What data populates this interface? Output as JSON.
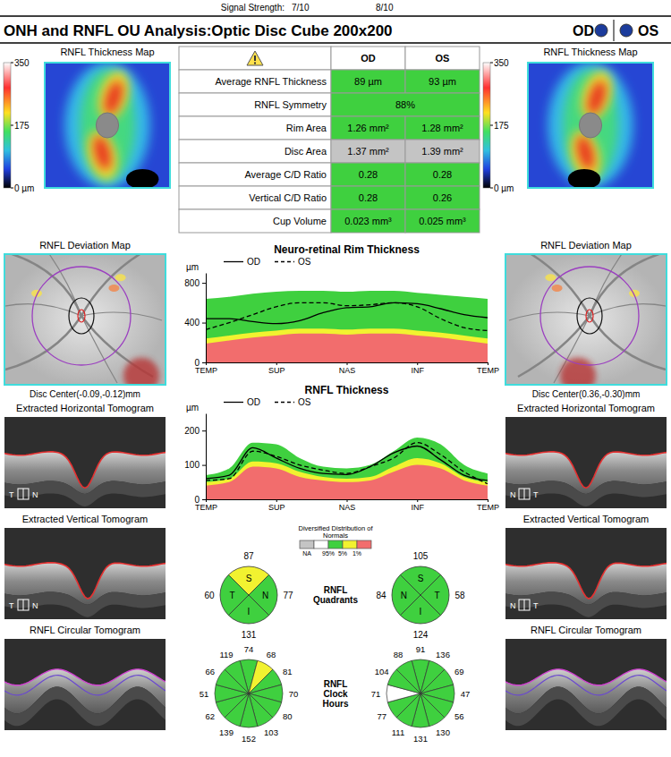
{
  "header": {
    "signal_label": "Signal Strength:",
    "signal_od": "7/10",
    "signal_os": "8/10",
    "title": "ONH and RNFL OU Analysis:Optic Disc Cube 200x200",
    "eyes": [
      "OD",
      "OS"
    ]
  },
  "table": {
    "columns": [
      "OD",
      "OS"
    ],
    "rows": [
      {
        "label": "Average RNFL Thickness",
        "od": "89 µm",
        "os": "93 µm",
        "color": "#3fd03f"
      },
      {
        "label": "RNFL Symmetry",
        "both": "88%",
        "color": "#3fd03f"
      },
      {
        "label": "Rim Area",
        "od": "1.26 mm²",
        "os": "1.28 mm²",
        "color": "#3fd03f"
      },
      {
        "label": "Disc Area",
        "od": "1.37 mm²",
        "os": "1.39 mm²",
        "color": "#c4c4c4"
      },
      {
        "label": "Average C/D Ratio",
        "od": "0.28",
        "os": "0.28",
        "color": "#3fd03f"
      },
      {
        "label": "Vertical C/D Ratio",
        "od": "0.28",
        "os": "0.26",
        "color": "#3fd03f"
      },
      {
        "label": "Cup Volume",
        "od": "0.023 mm³",
        "os": "0.025 mm³",
        "color": "#3fd03f"
      }
    ]
  },
  "eyes": [
    {
      "thickness_map_title": "RNFL Thickness Map",
      "colorbar": {
        "range": [
          0,
          350
        ],
        "ticks": [
          350,
          175,
          {
            "value": 0,
            "label": "0 µm"
          }
        ]
      },
      "deviation_map_title": "RNFL Deviation Map",
      "disc_center": "Disc Center(-0.09,-0.12)mm",
      "tomograms": [
        {
          "title": "Extracted Horizontal Tomogram",
          "orientation": [
            "T",
            "N"
          ]
        },
        {
          "title": "Extracted Vertical Tomogram",
          "orientation": [
            "T",
            "N"
          ]
        },
        {
          "title": "RNFL Circular Tomogram"
        }
      ]
    },
    {
      "thickness_map_title": "RNFL Thickness Map",
      "colorbar": {
        "range": [
          0,
          350
        ],
        "ticks": [
          350,
          175,
          {
            "value": 0,
            "label": "0 µm"
          }
        ]
      },
      "deviation_map_title": "RNFL Deviation Map",
      "disc_center": "Disc Center(0.36,-0.30)mm",
      "tomograms": [
        {
          "title": "Extracted Horizontal Tomogram",
          "orientation": [
            "N",
            "T"
          ]
        },
        {
          "title": "Extracted Vertical Tomogram",
          "orientation": [
            "N",
            "T"
          ]
        },
        {
          "title": "RNFL Circular Tomogram"
        }
      ]
    }
  ],
  "chart_data": [
    {
      "type": "line",
      "title": "Neuro-retinal Rim Thickness",
      "y_label": "µm",
      "legend": "top",
      "x": [
        0,
        30,
        60,
        90,
        120,
        150,
        180,
        210,
        240,
        270,
        300,
        330,
        360
      ],
      "xlim": [
        0,
        360
      ],
      "xticks": [
        {
          "value": 0,
          "label": "TEMP"
        },
        {
          "value": 90,
          "label": "SUP"
        },
        {
          "value": 180,
          "label": "NAS"
        },
        {
          "value": 270,
          "label": "INF"
        },
        {
          "value": 360,
          "label": "TEMP"
        }
      ],
      "ylim": [
        0,
        900
      ],
      "yticks": [
        0,
        400,
        800
      ],
      "series": [
        {
          "type": "area",
          "color": "#3fd03f",
          "values": [
            640,
            660,
            690,
            710,
            720,
            720,
            710,
            720,
            720,
            700,
            680,
            660,
            640
          ]
        },
        {
          "type": "area",
          "color": "#f2f230",
          "values": [
            240,
            270,
            300,
            320,
            340,
            340,
            330,
            340,
            340,
            320,
            300,
            270,
            240
          ]
        },
        {
          "type": "area",
          "color": "#f26d6d",
          "values": [
            190,
            220,
            250,
            270,
            290,
            290,
            280,
            290,
            290,
            270,
            250,
            220,
            190
          ]
        },
        {
          "name": "OD",
          "type": "line",
          "color": "#000000",
          "line_style": "solid",
          "values": [
            440,
            440,
            410,
            390,
            420,
            500,
            550,
            560,
            600,
            590,
            540,
            480,
            450
          ]
        },
        {
          "name": "OS",
          "type": "line",
          "color": "#000000",
          "line_style": "dashed",
          "values": [
            330,
            400,
            480,
            560,
            600,
            600,
            570,
            580,
            600,
            560,
            440,
            350,
            320
          ]
        }
      ]
    },
    {
      "type": "line",
      "title": "RNFL Thickness",
      "y_label": "µm",
      "legend": "top",
      "x": [
        0,
        30,
        60,
        90,
        120,
        150,
        180,
        210,
        240,
        270,
        300,
        330,
        360
      ],
      "xlim": [
        0,
        360
      ],
      "xticks": [
        {
          "value": 0,
          "label": "TEMP"
        },
        {
          "value": 90,
          "label": "SUP"
        },
        {
          "value": 180,
          "label": "NAS"
        },
        {
          "value": 270,
          "label": "INF"
        },
        {
          "value": 360,
          "label": "TEMP"
        }
      ],
      "ylim": [
        0,
        250
      ],
      "yticks": [
        0,
        100,
        200
      ],
      "series": [
        {
          "type": "area",
          "color": "#3fd03f",
          "values": [
            70,
            90,
            165,
            160,
            120,
            95,
            90,
            100,
            140,
            180,
            160,
            100,
            75
          ]
        },
        {
          "type": "area",
          "color": "#f2f230",
          "values": [
            50,
            60,
            110,
            105,
            80,
            65,
            60,
            65,
            95,
            120,
            105,
            65,
            50
          ]
        },
        {
          "type": "area",
          "color": "#f26d6d",
          "values": [
            40,
            50,
            95,
            90,
            65,
            55,
            50,
            55,
            80,
            100,
            90,
            55,
            40
          ]
        },
        {
          "name": "OD",
          "type": "line",
          "color": "#000000",
          "line_style": "solid",
          "values": [
            60,
            70,
            150,
            120,
            90,
            75,
            72,
            95,
            135,
            155,
            115,
            70,
            55
          ]
        },
        {
          "name": "OS",
          "type": "line",
          "color": "#000000",
          "line_style": "dashed",
          "values": [
            55,
            60,
            140,
            125,
            100,
            85,
            75,
            95,
            120,
            165,
            130,
            80,
            45
          ]
        }
      ]
    }
  ],
  "normals_legend": {
    "title": "Diversified Distribution of Normals",
    "colors": [
      "#c4c4c4",
      "#ffffff",
      "#3fd03f",
      "#f2f230",
      "#f26d6d"
    ],
    "labels": [
      "NA",
      "95%",
      "5%",
      "1%"
    ]
  },
  "rnfl_sectors": {
    "quadrants_title": "RNFL Quadrants",
    "clock_title": "RNFL Clock Hours",
    "quadrants": [
      [
        {
          "label": "S",
          "value": 87,
          "color": "#f2f230"
        },
        {
          "label": "N",
          "value": 77,
          "color": "#3fd03f"
        },
        {
          "label": "I",
          "value": 131,
          "color": "#3fd03f"
        },
        {
          "label": "T",
          "value": 60,
          "color": "#3fd03f"
        }
      ],
      [
        {
          "label": "S",
          "value": 105,
          "color": "#3fd03f"
        },
        {
          "label": "T",
          "value": 58,
          "color": "#3fd03f"
        },
        {
          "label": "I",
          "value": 124,
          "color": "#3fd03f"
        },
        {
          "label": "N",
          "value": 84,
          "color": "#3fd03f"
        }
      ]
    ],
    "clock_hours": [
      {
        "values": [
          74,
          68,
          81,
          70,
          80,
          103,
          152,
          139,
          62,
          51,
          66,
          119
        ],
        "colors": [
          "#3fd03f",
          "#f2f230",
          "#3fd03f",
          "#3fd03f",
          "#3fd03f",
          "#3fd03f",
          "#3fd03f",
          "#3fd03f",
          "#3fd03f",
          "#3fd03f",
          "#3fd03f",
          "#3fd03f"
        ]
      },
      {
        "values": [
          91,
          136,
          69,
          47,
          56,
          130,
          131,
          111,
          77,
          71,
          104,
          88
        ],
        "colors": [
          "#3fd03f",
          "#3fd03f",
          "#3fd03f",
          "#3fd03f",
          "#3fd03f",
          "#3fd03f",
          "#3fd03f",
          "#3fd03f",
          "#3fd03f",
          "#ffffff",
          "#3fd03f",
          "#3fd03f"
        ]
      }
    ]
  }
}
